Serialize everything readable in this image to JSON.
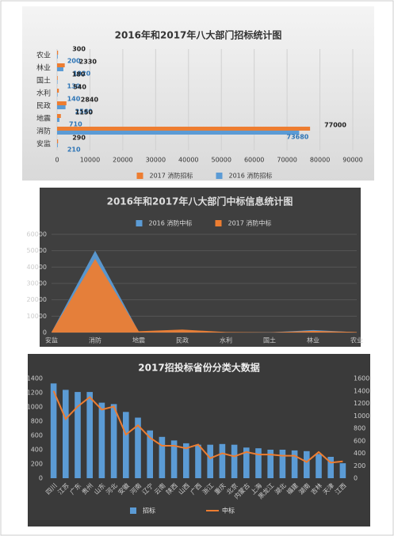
{
  "chart_data": [
    {
      "type": "barh",
      "title": "2016年和2017年八大部门招标统计图",
      "categories": [
        "农业",
        "林业",
        "国土",
        "水利",
        "民政",
        "地震",
        "消防",
        "安监"
      ],
      "series": [
        {
          "name": "2017 消防招标",
          "color": "#ed7d31",
          "values": [
            300,
            2330,
            180,
            540,
            2840,
            1150,
            77000,
            290
          ]
        },
        {
          "name": "2016 消防招标",
          "color": "#5b9bd5",
          "values": [
            200,
            1920,
            130,
            140,
            2560,
            710,
            73680,
            210
          ]
        }
      ],
      "xlim": [
        0,
        90000
      ],
      "xticks": [
        0,
        10000,
        20000,
        30000,
        40000,
        50000,
        60000,
        70000,
        80000,
        90000
      ],
      "grid": true
    },
    {
      "type": "area",
      "title": "2016年和2017年八大部门中标信息统计图",
      "categories": [
        "安监",
        "消防",
        "地震",
        "民政",
        "水利",
        "国土",
        "林业",
        "农业"
      ],
      "series": [
        {
          "name": "2016 消防中标",
          "color": "#5b9bd5",
          "values": [
            200,
            50000,
            500,
            1500,
            200,
            100,
            1500,
            200
          ]
        },
        {
          "name": "2017 消防中标",
          "color": "#ed7d31",
          "values": [
            300,
            45000,
            800,
            1800,
            300,
            150,
            1000,
            300
          ]
        }
      ],
      "ylim": [
        0,
        60000
      ],
      "yticks": [
        0,
        10000,
        20000,
        30000,
        40000,
        50000,
        60000
      ],
      "grid": true
    },
    {
      "type": "combo",
      "title": "2017招投标省份分类大数据",
      "categories": [
        "四川",
        "江苏",
        "广东",
        "贵州",
        "山东",
        "河北",
        "安徽",
        "河南",
        "辽宁",
        "云南",
        "陕西",
        "山西",
        "广西",
        "浙江",
        "重庆",
        "北京",
        "内蒙古",
        "上海",
        "黑龙江",
        "湖北",
        "福建",
        "湖南",
        "吉林",
        "天津",
        "江西"
      ],
      "series": [
        {
          "name": "招标",
          "color": "#5b9bd5",
          "values": [
            1330,
            1240,
            1210,
            1210,
            1060,
            1040,
            930,
            850,
            670,
            580,
            530,
            490,
            470,
            470,
            480,
            470,
            430,
            420,
            400,
            400,
            390,
            380,
            340,
            300,
            210
          ]
        },
        {
          "name": "中标",
          "color": "#ed7d31",
          "axis": "y2",
          "values": [
            1400,
            950,
            1150,
            1300,
            1100,
            1150,
            700,
            850,
            650,
            520,
            520,
            480,
            540,
            320,
            400,
            350,
            420,
            380,
            380,
            360,
            360,
            260,
            420,
            250,
            270
          ]
        }
      ],
      "ylim": [
        0,
        1400
      ],
      "yticks": [
        0,
        200,
        400,
        600,
        800,
        1000,
        1200,
        1400
      ],
      "y2lim": [
        0,
        1600
      ],
      "y2ticks": [
        0,
        200,
        400,
        600,
        800,
        1000,
        1200,
        1400,
        1600
      ],
      "grid": false
    }
  ]
}
